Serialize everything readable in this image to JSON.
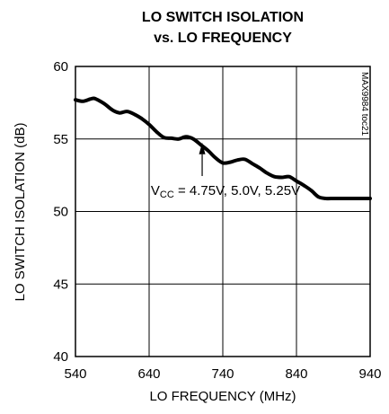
{
  "chart_data": {
    "type": "line",
    "title_lines": [
      "LO SWITCH ISOLATION",
      "vs. LO FREQUENCY"
    ],
    "xlabel": "LO FREQUENCY (MHz)",
    "ylabel": "LO SWITCH ISOLATION (dB)",
    "xlim": [
      540,
      940
    ],
    "ylim": [
      40,
      60
    ],
    "xticks": [
      540,
      640,
      740,
      840,
      940
    ],
    "yticks": [
      40,
      45,
      50,
      55,
      60
    ],
    "grid": true,
    "chart_code": "MAX9984 toc21",
    "annotation": {
      "prefix": "V",
      "subscript": "CC",
      "suffix": " = 4.75V, 5.0V, 5.25V",
      "arrow_x": 712,
      "arrow_y": 55.0
    },
    "series": [
      {
        "line_color": "#000000",
        "x": [
          540,
          550,
          560,
          565,
          570,
          580,
          590,
          600,
          610,
          620,
          630,
          640,
          650,
          660,
          670,
          680,
          690,
          700,
          710,
          720,
          730,
          740,
          750,
          760,
          770,
          780,
          790,
          800,
          810,
          820,
          830,
          840,
          850,
          860,
          870,
          880,
          890,
          900,
          910,
          920,
          930,
          940
        ],
        "y": [
          57.7,
          57.6,
          57.75,
          57.8,
          57.7,
          57.4,
          57.0,
          56.8,
          56.9,
          56.7,
          56.4,
          56.0,
          55.5,
          55.1,
          55.05,
          55.0,
          55.15,
          55.0,
          54.6,
          54.2,
          53.7,
          53.35,
          53.4,
          53.55,
          53.6,
          53.3,
          53.0,
          52.65,
          52.4,
          52.35,
          52.4,
          52.1,
          51.8,
          51.45,
          51.0,
          50.9,
          50.9,
          50.9,
          50.9,
          50.9,
          50.9,
          50.9
        ]
      }
    ]
  }
}
